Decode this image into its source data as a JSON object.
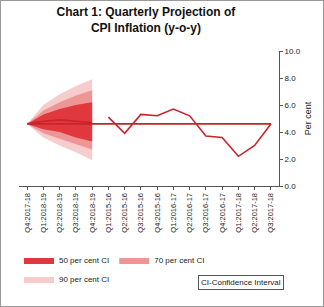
{
  "chart_data": {
    "type": "fan",
    "title": "Chart 1: Quarterly Projection of\nCPI Inflation (y-o-y)",
    "y_label": "Per cent",
    "categories": [
      "Q1:2015-16",
      "Q2:2015-16",
      "Q3:2015-16",
      "Q4:2015-16",
      "Q1:2016-17",
      "Q2:2016-17",
      "Q3:2016-17",
      "Q4:2016-17",
      "Q1:2017-18",
      "Q2:2017-18",
      "Q3:2017-18",
      "Q4:2017-18",
      "Q1:2018-19",
      "Q2:2018-19",
      "Q3:2018-19",
      "Q4:2018-19"
    ],
    "series": [
      {
        "type": "line",
        "color": "#c8242b",
        "values": [
          5.1,
          3.9,
          5.3,
          5.2,
          5.7,
          5.2,
          3.7,
          3.6,
          2.2,
          3.0,
          4.6,
          4.6,
          4.8,
          4.9,
          4.8,
          4.7
        ]
      },
      {
        "type": "band",
        "name": "90 per cent CI",
        "color": "#f7cccc",
        "lower": [
          null,
          null,
          null,
          null,
          null,
          null,
          null,
          null,
          null,
          null,
          null,
          4.6,
          3.6,
          3.0,
          2.5,
          1.9
        ],
        "upper": [
          null,
          null,
          null,
          null,
          null,
          null,
          null,
          null,
          null,
          null,
          null,
          4.6,
          6.0,
          6.8,
          7.4,
          7.9
        ]
      },
      {
        "type": "band",
        "name": "70 per cent CI",
        "color": "#ee9596",
        "lower": [
          null,
          null,
          null,
          null,
          null,
          null,
          null,
          null,
          null,
          null,
          null,
          4.6,
          3.9,
          3.5,
          3.1,
          2.7
        ],
        "upper": [
          null,
          null,
          null,
          null,
          null,
          null,
          null,
          null,
          null,
          null,
          null,
          4.6,
          5.6,
          6.2,
          6.7,
          7.1
        ]
      },
      {
        "type": "band",
        "name": "50 per cent CI",
        "color": "#e0383d",
        "lower": [
          null,
          null,
          null,
          null,
          null,
          null,
          null,
          null,
          null,
          null,
          null,
          4.6,
          4.2,
          4.0,
          3.6,
          3.3
        ],
        "upper": [
          null,
          null,
          null,
          null,
          null,
          null,
          null,
          null,
          null,
          null,
          null,
          4.6,
          5.3,
          5.7,
          6.0,
          6.2
        ]
      }
    ],
    "legend_order": [
      "50 per cent CI",
      "70 per cent CI",
      "90 per cent CI"
    ],
    "annotations": [
      "CI-Confidence Interval"
    ],
    "ylim": [
      0,
      10
    ],
    "yticks": [
      {
        "value": 0,
        "label": "0.0"
      },
      {
        "value": 2,
        "label": "2.0"
      },
      {
        "value": 4,
        "label": "4.0"
      },
      {
        "value": 6,
        "label": "6.0"
      },
      {
        "value": 8,
        "label": "8.0"
      },
      {
        "value": 10,
        "label": "10.0"
      }
    ],
    "grid": false,
    "legend": "bottom"
  }
}
